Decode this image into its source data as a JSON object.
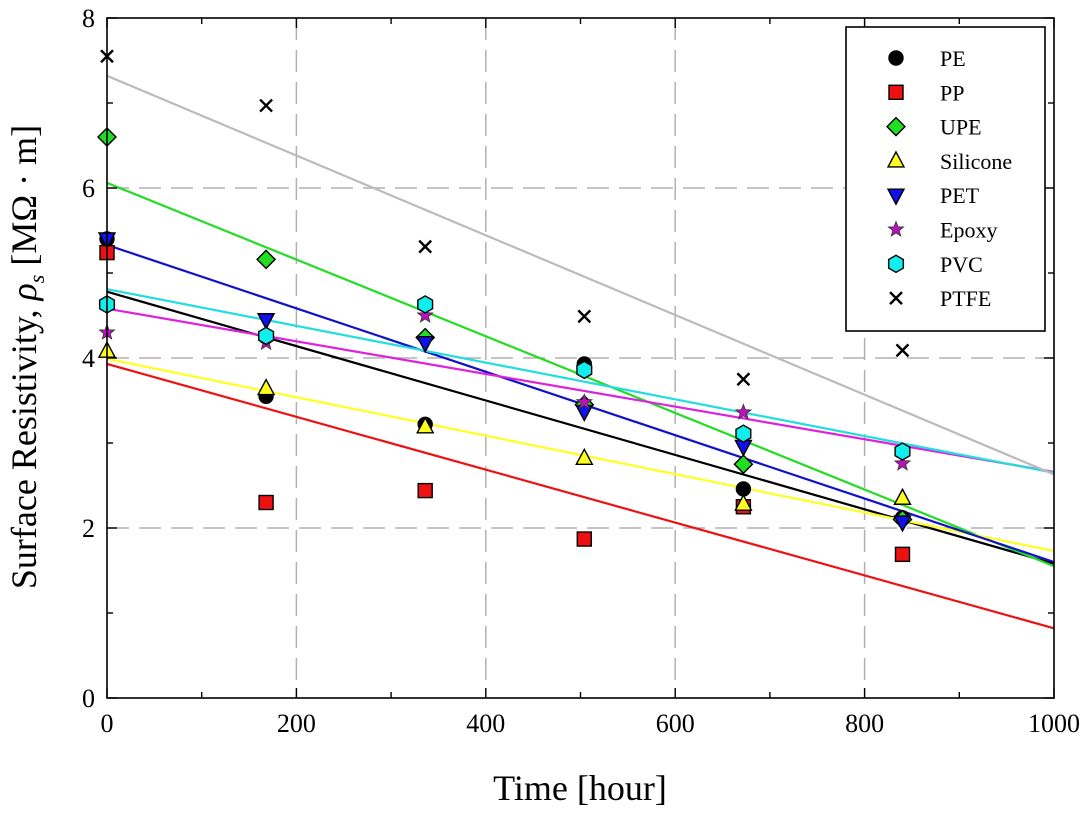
{
  "chart_data": {
    "type": "scatter",
    "xlabel": "Time [hour]",
    "ylabel_prefix": "Surface Resistivity, ",
    "ylabel_symbol": "ρ",
    "ylabel_subscript": "s",
    "ylabel_suffix": " [MΩ · m]",
    "xlim": [
      0,
      1000
    ],
    "ylim": [
      0,
      8
    ],
    "xticks": [
      0,
      200,
      400,
      600,
      800,
      1000
    ],
    "yticks": [
      0,
      2,
      4,
      6,
      8
    ],
    "xtick_labels": [
      "0",
      "200",
      "400",
      "600",
      "800",
      "1000"
    ],
    "ytick_labels": [
      "0",
      "2",
      "4",
      "6",
      "8"
    ],
    "grid": true,
    "legend_position": "top-right",
    "x": [
      0,
      168,
      336,
      504,
      672,
      840
    ],
    "series": [
      {
        "name": "PE",
        "marker": "circle",
        "color": "#000000",
        "line_color": "#000000",
        "values": [
          5.4,
          3.55,
          3.22,
          3.93,
          2.46,
          2.12
        ],
        "fit": [
          4.78,
          1.58
        ]
      },
      {
        "name": "PP",
        "marker": "square",
        "color": "#ee1111",
        "line_color": "#ee1111",
        "values": [
          5.24,
          2.3,
          2.44,
          1.87,
          2.25,
          1.69
        ],
        "fit": [
          3.93,
          0.82
        ]
      },
      {
        "name": "UPE",
        "marker": "diamond",
        "color": "#22dd22",
        "line_color": "#22dd22",
        "values": [
          6.6,
          5.16,
          4.24,
          3.45,
          2.75,
          2.1
        ],
        "fit": [
          6.06,
          1.55
        ]
      },
      {
        "name": "Silicone",
        "marker": "triangle-up",
        "color": "#ffff22",
        "line_color": "#ffff22",
        "values": [
          4.08,
          3.64,
          3.19,
          2.82,
          2.28,
          2.35
        ],
        "fit": [
          3.99,
          1.73
        ]
      },
      {
        "name": "PET",
        "marker": "triangle-down",
        "color": "#1111ee",
        "line_color": "#1111cc",
        "values": [
          5.4,
          4.45,
          4.18,
          3.37,
          2.96,
          2.07
        ],
        "fit": [
          5.33,
          1.6
        ]
      },
      {
        "name": "Epoxy",
        "marker": "star",
        "color": "#bb11bb",
        "line_color": "#dd22dd",
        "values": [
          4.3,
          4.18,
          4.5,
          3.48,
          3.36,
          2.76
        ],
        "fit": [
          4.58,
          2.66
        ]
      },
      {
        "name": "PVC",
        "marker": "hexagon",
        "color": "#11eeee",
        "line_color": "#22dddd",
        "values": [
          4.63,
          4.26,
          4.63,
          3.86,
          3.11,
          2.9
        ],
        "fit": [
          4.81,
          2.65
        ]
      },
      {
        "name": "PTFE",
        "marker": "x",
        "color": "#000000",
        "line_color": "#bbbbbb",
        "values": [
          7.55,
          6.97,
          5.31,
          4.49,
          3.75,
          4.09
        ],
        "fit": [
          7.32,
          2.63
        ]
      }
    ]
  }
}
